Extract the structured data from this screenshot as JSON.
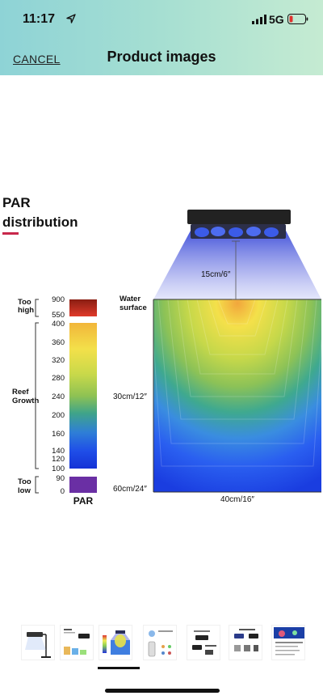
{
  "status": {
    "time": "11:17",
    "network": "5G"
  },
  "header": {
    "cancel_label": "CANCEL",
    "title": "Product images"
  },
  "figure": {
    "heading_line1": "PAR",
    "heading_line2": "distribution",
    "scale": {
      "too_high_label_1": "Too",
      "too_high_label_2": "high",
      "reef_label_1": "Reef",
      "reef_label_2": "Growth",
      "too_low_label_1": "Too",
      "too_low_label_2": "low",
      "unit_label": "PAR",
      "high_ticks": [
        "900",
        "550"
      ],
      "reef_ticks": [
        "400",
        "360",
        "320",
        "280",
        "240",
        "200",
        "160",
        "140",
        "120",
        "100"
      ],
      "low_ticks": [
        "90",
        "0"
      ]
    },
    "tank": {
      "light_distance": "15cm/6″",
      "water_surface_1": "Water",
      "water_surface_2": "surface",
      "depth_mid": "30cm/12″",
      "depth_bottom": "60cm/24″",
      "width": "40cm/16″"
    }
  },
  "thumbnails": {
    "count": 7,
    "selected_index": 2
  }
}
